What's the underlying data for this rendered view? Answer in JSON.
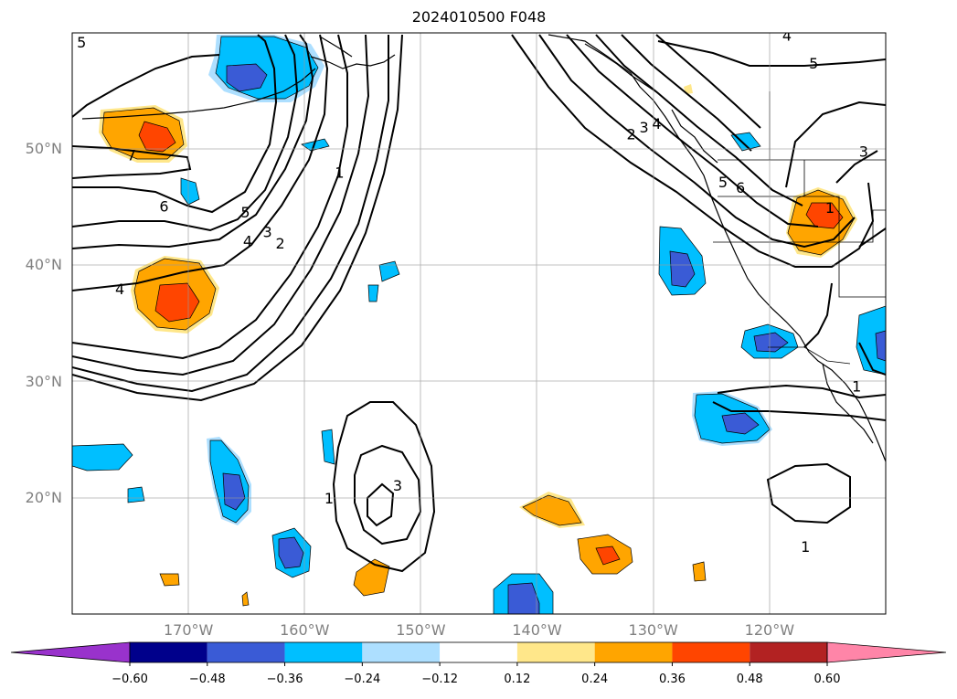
{
  "title": "2024010500 F048",
  "lat_labels": [
    {
      "text": "50°N",
      "lat": 50
    },
    {
      "text": "40°N",
      "lat": 40
    },
    {
      "text": "30°N",
      "lat": 30
    },
    {
      "text": "20°N",
      "lat": 20
    }
  ],
  "lon_labels": [
    {
      "text": "170°W",
      "lon": -170
    },
    {
      "text": "160°W",
      "lon": -160
    },
    {
      "text": "150°W",
      "lon": -150
    },
    {
      "text": "140°W",
      "lon": -140
    },
    {
      "text": "130°W",
      "lon": -130
    },
    {
      "text": "120°W",
      "lon": -120
    }
  ],
  "extent": {
    "lon_min": -180,
    "lon_max": -110,
    "lat_min": 10,
    "lat_max": 60
  },
  "colorbar": {
    "ticks": [
      "−0.60",
      "−0.48",
      "−0.36",
      "−0.24",
      "−0.12",
      "0.12",
      "0.24",
      "0.36",
      "0.48",
      "0.60"
    ],
    "colors": [
      "#9932CC",
      "#00008B",
      "#3A5BD6",
      "#00BFFF",
      "#ADDFFF",
      "#FFFFFF",
      "#FFE78A",
      "#FFA500",
      "#FF4500",
      "#B22222",
      "#FF85A8"
    ]
  },
  "contour_labels": [
    {
      "text": "5",
      "lon": -179.2,
      "lat": 59.2
    },
    {
      "text": "7",
      "lon": -174.9,
      "lat": 49.5
    },
    {
      "text": "6",
      "lon": -172.1,
      "lat": 45.1
    },
    {
      "text": "5",
      "lon": -165.1,
      "lat": 44.6
    },
    {
      "text": "4",
      "lon": -164.9,
      "lat": 42.1
    },
    {
      "text": "3",
      "lon": -163.2,
      "lat": 42.9
    },
    {
      "text": "2",
      "lon": -162.1,
      "lat": 41.9
    },
    {
      "text": "4",
      "lon": -175.9,
      "lat": 38.0
    },
    {
      "text": "1",
      "lon": -157.0,
      "lat": 48.0
    },
    {
      "text": "5",
      "lon": -116.2,
      "lat": 57.4
    },
    {
      "text": "4",
      "lon": -118.5,
      "lat": 59.8
    },
    {
      "text": "2",
      "lon": -131.9,
      "lat": 51.3
    },
    {
      "text": "3",
      "lon": -130.8,
      "lat": 51.9
    },
    {
      "text": "4",
      "lon": -129.7,
      "lat": 52.2
    },
    {
      "text": "5",
      "lon": -124.0,
      "lat": 47.2
    },
    {
      "text": "6",
      "lon": -122.5,
      "lat": 46.7
    },
    {
      "text": "3",
      "lon": -111.9,
      "lat": 49.8
    },
    {
      "text": "1",
      "lon": -114.8,
      "lat": 45.0
    },
    {
      "text": "1",
      "lon": -112.5,
      "lat": 29.6
    },
    {
      "text": "1",
      "lon": -157.9,
      "lat": 20.0
    },
    {
      "text": "3",
      "lon": -152.0,
      "lat": 21.1
    },
    {
      "text": "1",
      "lon": -116.9,
      "lat": 15.8
    }
  ]
}
